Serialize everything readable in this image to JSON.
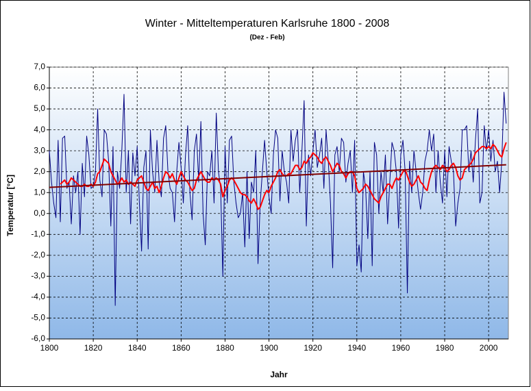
{
  "chart_data": {
    "type": "line",
    "title": "Winter - Mitteltemperaturen Karlsruhe 1800 - 2008",
    "subtitle": "(Dez - Feb)",
    "x_label": "Jahr",
    "y_label": "Temperatur [°C]",
    "xlim": [
      1800,
      2009
    ],
    "ylim": [
      -6,
      7
    ],
    "xticks": [
      1800,
      1820,
      1840,
      1860,
      1880,
      1900,
      1920,
      1940,
      1960,
      1980,
      2000
    ],
    "yticks": [
      {
        "value": -6,
        "label": "-6,0"
      },
      {
        "value": -5,
        "label": "-5,0"
      },
      {
        "value": -4,
        "label": "-4,0"
      },
      {
        "value": -3,
        "label": "-3,0"
      },
      {
        "value": -2,
        "label": "-2,0"
      },
      {
        "value": -1,
        "label": "-1,0"
      },
      {
        "value": 0,
        "label": "0,0"
      },
      {
        "value": 1,
        "label": "1,0"
      },
      {
        "value": 2,
        "label": "2,0"
      },
      {
        "value": 3,
        "label": "3,0"
      },
      {
        "value": 4,
        "label": "4,0"
      },
      {
        "value": 5,
        "label": "5,0"
      },
      {
        "value": 6,
        "label": "6,0"
      },
      {
        "value": 7,
        "label": "7,0"
      }
    ],
    "grid": true,
    "x": [
      1800,
      1801,
      1802,
      1803,
      1804,
      1805,
      1806,
      1807,
      1808,
      1809,
      1810,
      1811,
      1812,
      1813,
      1814,
      1815,
      1816,
      1817,
      1818,
      1819,
      1820,
      1821,
      1822,
      1823,
      1824,
      1825,
      1826,
      1827,
      1828,
      1829,
      1830,
      1831,
      1832,
      1833,
      1834,
      1835,
      1836,
      1837,
      1838,
      1839,
      1840,
      1841,
      1842,
      1843,
      1844,
      1845,
      1846,
      1847,
      1848,
      1849,
      1850,
      1851,
      1852,
      1853,
      1854,
      1855,
      1856,
      1857,
      1858,
      1859,
      1860,
      1861,
      1862,
      1863,
      1864,
      1865,
      1866,
      1867,
      1868,
      1869,
      1870,
      1871,
      1872,
      1873,
      1874,
      1875,
      1876,
      1877,
      1878,
      1879,
      1880,
      1881,
      1882,
      1883,
      1884,
      1885,
      1886,
      1887,
      1888,
      1889,
      1890,
      1891,
      1892,
      1893,
      1894,
      1895,
      1896,
      1897,
      1898,
      1899,
      1900,
      1901,
      1902,
      1903,
      1904,
      1905,
      1906,
      1907,
      1908,
      1909,
      1910,
      1911,
      1912,
      1913,
      1914,
      1915,
      1916,
      1917,
      1918,
      1919,
      1920,
      1921,
      1922,
      1923,
      1924,
      1925,
      1926,
      1927,
      1928,
      1929,
      1930,
      1931,
      1932,
      1933,
      1934,
      1935,
      1936,
      1937,
      1938,
      1939,
      1940,
      1941,
      1942,
      1943,
      1944,
      1945,
      1946,
      1947,
      1948,
      1949,
      1950,
      1951,
      1952,
      1953,
      1954,
      1955,
      1956,
      1957,
      1958,
      1959,
      1960,
      1961,
      1962,
      1963,
      1964,
      1965,
      1966,
      1967,
      1968,
      1969,
      1970,
      1971,
      1972,
      1973,
      1974,
      1975,
      1976,
      1977,
      1978,
      1979,
      1980,
      1981,
      1982,
      1983,
      1984,
      1985,
      1986,
      1987,
      1988,
      1989,
      1990,
      1991,
      1992,
      1993,
      1994,
      1995,
      1996,
      1997,
      1998,
      1999,
      2000,
      2001,
      2002,
      2003,
      2004,
      2005,
      2006,
      2007,
      2008
    ],
    "series": [
      {
        "color": "#000080",
        "width": 1,
        "values": [
          3.0,
          1.5,
          0.5,
          -0.2,
          3.5,
          -0.4,
          3.6,
          3.7,
          1.2,
          1.5,
          -0.5,
          1.8,
          1.0,
          2.0,
          -1.0,
          2.4,
          0.8,
          3.7,
          2.8,
          1.2,
          1.3,
          2.0,
          5.0,
          1.6,
          0.8,
          4.0,
          3.8,
          2.5,
          -0.6,
          3.2,
          -4.4,
          2.0,
          1.2,
          3.0,
          5.7,
          1.0,
          3.0,
          -0.5,
          2.9,
          1.8,
          3.2,
          0.5,
          -1.8,
          2.2,
          3.0,
          -1.7,
          4.0,
          2.0,
          1.0,
          3.5,
          1.5,
          0.8,
          3.6,
          4.2,
          2.0,
          1.2,
          1.0,
          -0.4,
          2.0,
          3.4,
          2.2,
          0.5,
          2.8,
          4.2,
          1.0,
          -0.3,
          3.0,
          3.8,
          1.5,
          4.4,
          0.0,
          -1.5,
          2.0,
          1.8,
          3.0,
          0.5,
          4.8,
          2.0,
          1.2,
          -3.0,
          3.2,
          0.5,
          3.5,
          3.7,
          1.5,
          0.5,
          -0.2,
          0.0,
          1.0,
          -1.6,
          2.0,
          -1.2,
          1.5,
          1.0,
          3.0,
          -2.4,
          0.5,
          2.0,
          3.5,
          2.0,
          0.8,
          0.0,
          2.8,
          4.0,
          3.6,
          0.6,
          3.0,
          2.0,
          1.5,
          0.5,
          4.0,
          2.5,
          3.5,
          4.0,
          1.0,
          3.0,
          5.4,
          -0.6,
          2.8,
          1.8,
          3.0,
          4.0,
          2.2,
          2.8,
          3.6,
          1.2,
          4.0,
          2.5,
          0.5,
          -2.6,
          2.8,
          3.2,
          2.0,
          3.6,
          3.4,
          1.5,
          2.4,
          3.0,
          1.0,
          3.5,
          -2.5,
          -1.5,
          -2.8,
          2.0,
          1.2,
          -1.2,
          2.0,
          -2.5,
          3.4,
          2.8,
          0.0,
          2.0,
          1.0,
          2.8,
          -0.5,
          1.5,
          3.4,
          3.0,
          2.0,
          -0.7,
          2.8,
          3.5,
          2.0,
          -3.8,
          2.5,
          1.0,
          3.0,
          2.0,
          1.0,
          0.2,
          1.0,
          2.5,
          3.0,
          4.0,
          3.0,
          3.8,
          1.0,
          3.0,
          1.5,
          0.5,
          3.0,
          0.8,
          3.2,
          2.5,
          2.0,
          -0.6,
          0.5,
          1.2,
          4.0,
          4.0,
          4.2,
          2.0,
          3.0,
          1.5,
          3.5,
          5.0,
          0.5,
          1.0,
          4.2,
          3.0,
          4.0,
          2.5,
          3.5,
          2.0,
          2.5,
          1.0,
          2.5,
          5.8,
          4.3
        ]
      },
      {
        "color": "#ff0000",
        "width": 2,
        "values": [
          null,
          null,
          null,
          null,
          null,
          1.4,
          1.5,
          1.6,
          1.4,
          1.5,
          1.7,
          1.6,
          1.5,
          1.4,
          1.3,
          1.3,
          1.4,
          1.3,
          1.3,
          1.4,
          1.3,
          1.5,
          1.9,
          2.0,
          2.3,
          2.6,
          2.5,
          2.4,
          2.0,
          1.8,
          1.6,
          1.4,
          1.5,
          1.7,
          1.5,
          1.6,
          1.4,
          1.5,
          1.4,
          1.3,
          1.6,
          1.7,
          1.8,
          1.5,
          1.2,
          1.1,
          1.3,
          1.5,
          1.2,
          1.3,
          1.0,
          1.3,
          1.7,
          2.0,
          1.9,
          1.7,
          1.9,
          1.6,
          1.4,
          1.7,
          2.0,
          1.8,
          1.6,
          1.5,
          1.3,
          1.1,
          1.2,
          1.6,
          1.8,
          2.0,
          1.8,
          1.6,
          1.5,
          1.5,
          1.7,
          1.6,
          1.7,
          1.6,
          1.4,
          0.8,
          1.1,
          1.3,
          1.6,
          1.7,
          1.6,
          1.4,
          1.2,
          1.0,
          0.9,
          0.9,
          0.8,
          0.6,
          0.5,
          0.7,
          0.5,
          0.2,
          0.3,
          0.6,
          0.9,
          1.1,
          1.0,
          1.3,
          1.5,
          1.7,
          2.0,
          2.1,
          1.9,
          1.8,
          1.8,
          1.9,
          1.9,
          2.1,
          2.3,
          2.3,
          2.1,
          2.2,
          2.5,
          2.4,
          2.6,
          2.7,
          2.9,
          2.8,
          2.7,
          2.5,
          2.4,
          2.6,
          2.7,
          2.5,
          2.3,
          2.0,
          2.2,
          2.4,
          2.3,
          2.0,
          1.9,
          1.7,
          1.9,
          2.0,
          2.0,
          1.8,
          1.2,
          1.0,
          1.1,
          1.2,
          1.4,
          1.3,
          1.1,
          0.9,
          0.7,
          0.6,
          0.5,
          0.8,
          1.0,
          1.2,
          1.4,
          1.4,
          1.2,
          1.5,
          1.7,
          1.6,
          1.8,
          2.0,
          2.1,
          1.8,
          1.5,
          1.3,
          1.4,
          1.6,
          1.8,
          1.5,
          1.4,
          1.2,
          1.1,
          1.6,
          2.0,
          2.2,
          2.3,
          2.2,
          2.1,
          2.3,
          2.2,
          2.0,
          2.1,
          2.3,
          2.4,
          2.2,
          1.8,
          1.6,
          1.7,
          2.1,
          2.2,
          2.3,
          2.4,
          2.6,
          2.9,
          3.0,
          3.1,
          3.2,
          3.2,
          3.1,
          3.2,
          3.1,
          3.3,
          3.2,
          3.0,
          2.8,
          2.7,
          3.1,
          3.4
        ]
      },
      {
        "color": "#800000",
        "width": 2,
        "x": [
          1800,
          2008
        ],
        "values": [
          1.25,
          2.33
        ]
      }
    ]
  }
}
